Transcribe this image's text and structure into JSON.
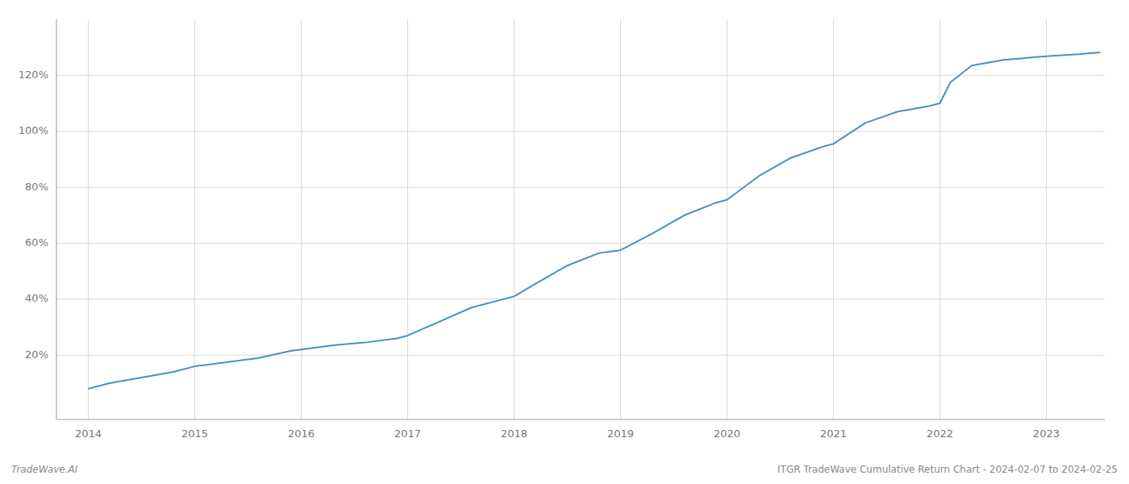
{
  "chart_data": {
    "type": "line",
    "x": [
      2014.0,
      2014.2,
      2014.5,
      2014.8,
      2015.0,
      2015.3,
      2015.6,
      2015.9,
      2016.0,
      2016.1,
      2016.3,
      2016.6,
      2016.9,
      2017.0,
      2017.3,
      2017.6,
      2017.9,
      2018.0,
      2018.2,
      2018.5,
      2018.8,
      2019.0,
      2019.3,
      2019.6,
      2019.9,
      2020.0,
      2020.3,
      2020.6,
      2020.9,
      2021.0,
      2021.3,
      2021.6,
      2021.9,
      2022.0,
      2022.1,
      2022.3,
      2022.6,
      2022.9,
      2023.0,
      2023.3,
      2023.5
    ],
    "values": [
      0.08,
      0.1,
      0.12,
      0.14,
      0.16,
      0.175,
      0.19,
      0.215,
      0.22,
      0.225,
      0.235,
      0.245,
      0.26,
      0.27,
      0.32,
      0.37,
      0.4,
      0.41,
      0.455,
      0.52,
      0.565,
      0.575,
      0.635,
      0.7,
      0.745,
      0.755,
      0.84,
      0.905,
      0.945,
      0.955,
      1.03,
      1.07,
      1.09,
      1.1,
      1.175,
      1.235,
      1.255,
      1.265,
      1.268,
      1.275,
      1.282
    ],
    "color": "#4a90c4",
    "xlim": [
      2013.7,
      2023.55
    ],
    "ylim": [
      -0.03,
      1.4
    ],
    "xticks": [
      2014,
      2015,
      2016,
      2017,
      2018,
      2019,
      2020,
      2021,
      2022,
      2023
    ],
    "yticks": [
      {
        "value": 0.2,
        "label": "20%"
      },
      {
        "value": 0.4,
        "label": "40%"
      },
      {
        "value": 0.6,
        "label": "60%"
      },
      {
        "value": 0.8,
        "label": "80%"
      },
      {
        "value": 1.0,
        "label": "100%"
      },
      {
        "value": 1.2,
        "label": "120%"
      }
    ],
    "grid": true,
    "annotations": [
      "TradeWave.AI",
      "ITGR TradeWave Cumulative Return Chart - 2024-02-07 to 2024-02-25"
    ]
  }
}
